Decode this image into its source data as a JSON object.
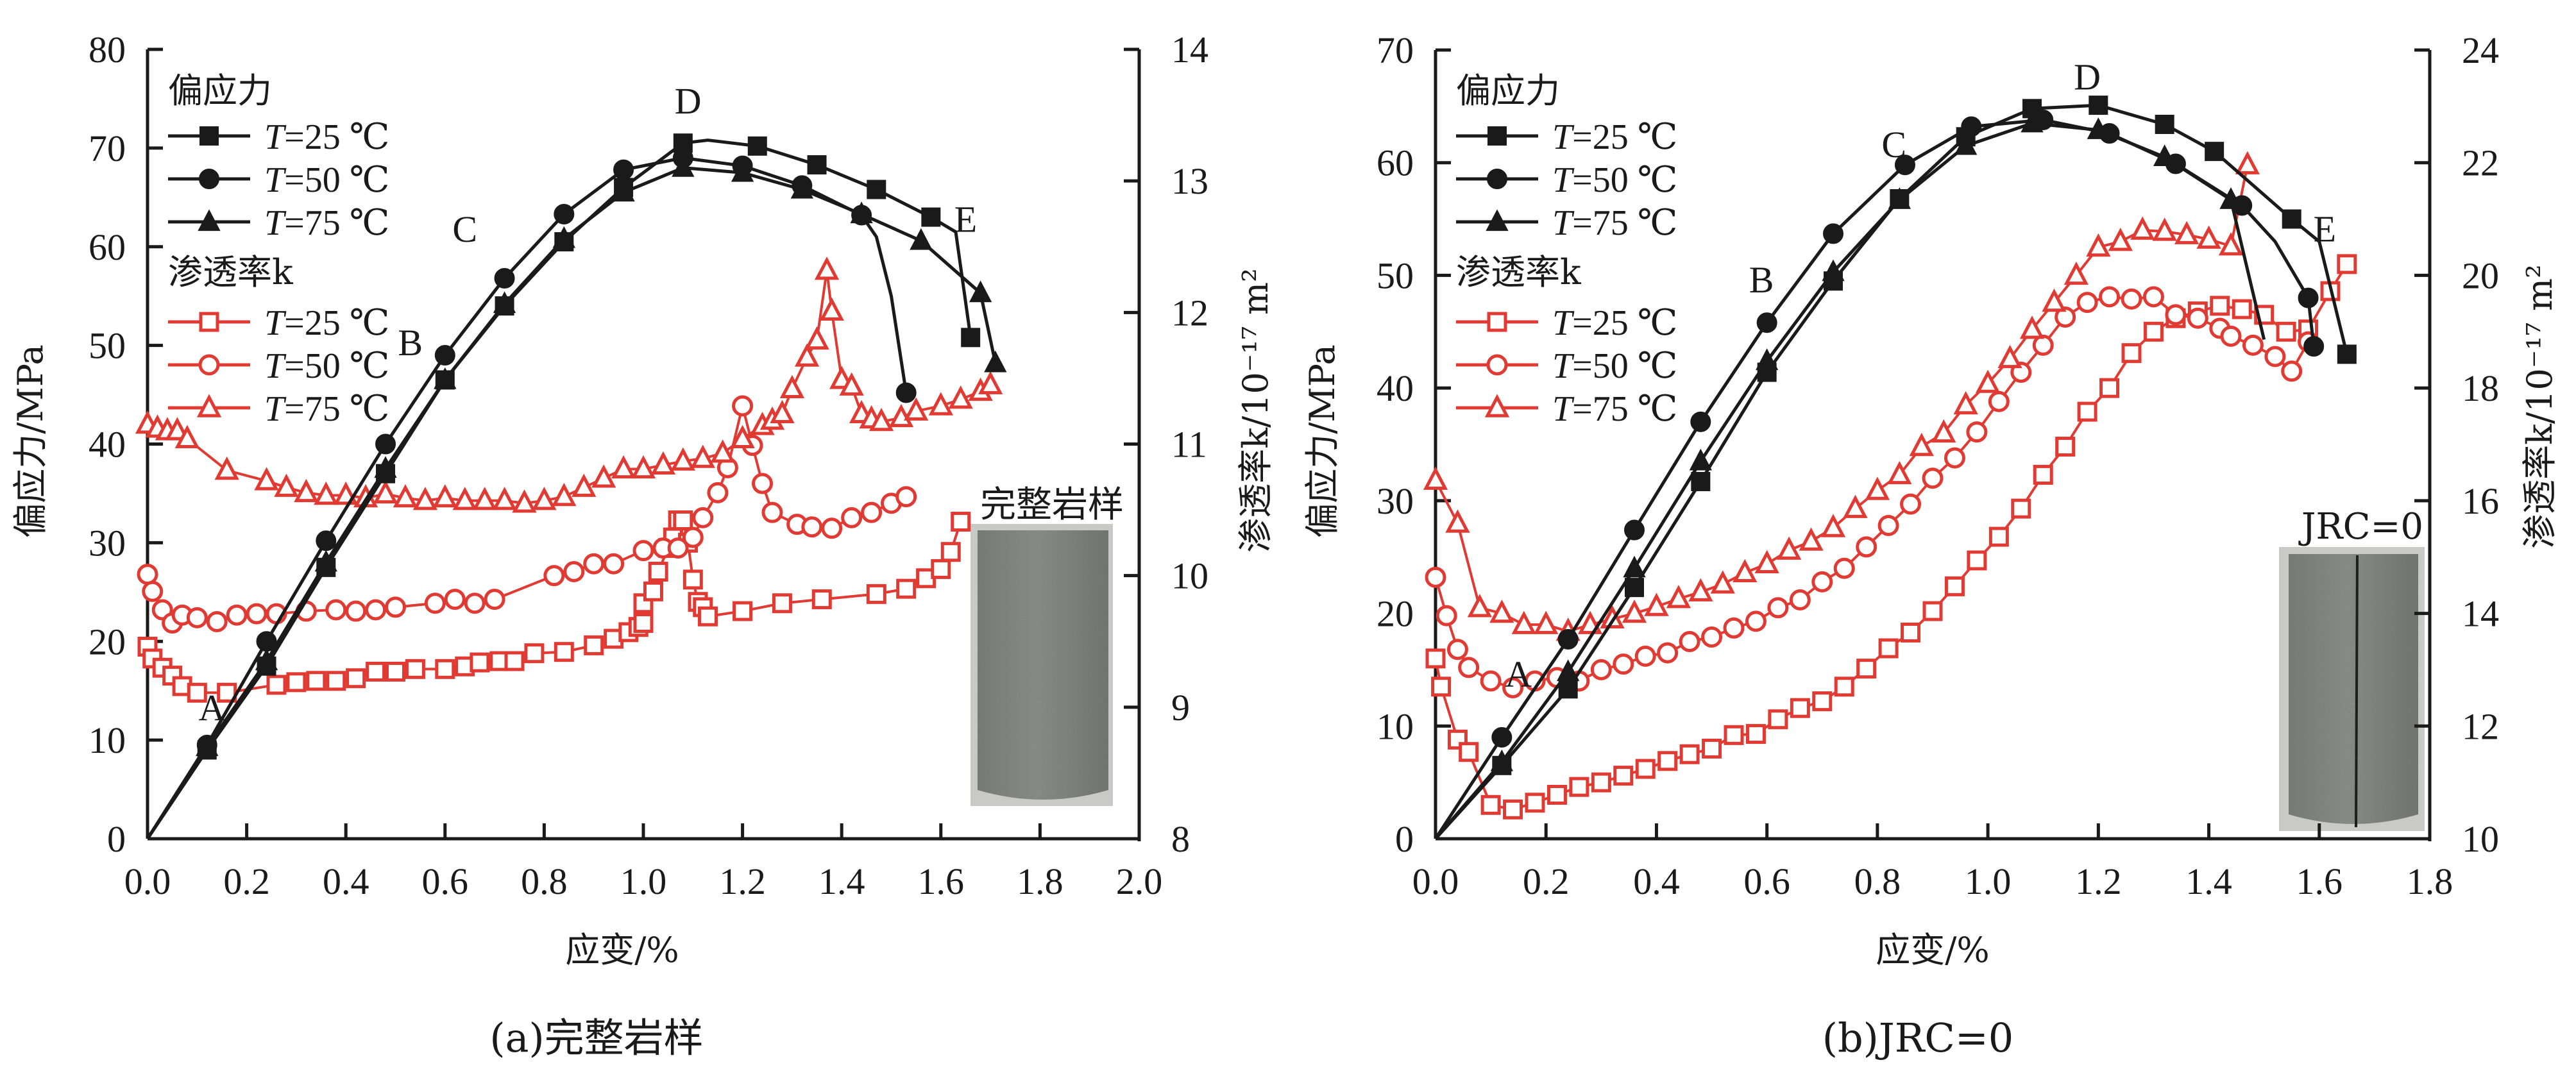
{
  "colors": {
    "stress": "#1a1a1a",
    "permeability": "#e03a33",
    "axis": "#1a1a1a"
  },
  "chart_data": [
    {
      "id": "a",
      "type": "line",
      "caption": "(a)完整岩样",
      "inset_label": "完整岩样",
      "xlabel": "应变/%",
      "ylabel": "偏应力/MPa",
      "y2label": "渗透率k/10⁻¹⁷ m²",
      "xlim": [
        0,
        2.0
      ],
      "ylim": [
        0,
        80
      ],
      "y2lim": [
        8,
        14
      ],
      "xticks": [
        "0.0",
        "0.2",
        "0.4",
        "0.6",
        "0.8",
        "1.0",
        "1.2",
        "1.4",
        "1.6",
        "1.8",
        "2.0"
      ],
      "yticks": [
        "0",
        "10",
        "20",
        "30",
        "40",
        "50",
        "60",
        "70",
        "80"
      ],
      "y2ticks": [
        "8",
        "9",
        "10",
        "11",
        "12",
        "13",
        "14"
      ],
      "grid": false,
      "legend": {
        "placement": "top-left",
        "stress_header": "偏应力",
        "perm_header": "渗透率k",
        "entries": [
          "T=25 ℃",
          "T=50 ℃",
          "T=75 ℃"
        ]
      },
      "point_labels": [
        {
          "text": "A",
          "x": 0.13,
          "y": 12
        },
        {
          "text": "B",
          "x": 0.53,
          "y": 49
        },
        {
          "text": "C",
          "x": 0.64,
          "y": 60.5
        },
        {
          "text": "D",
          "x": 1.09,
          "y": 73.5
        },
        {
          "text": "E",
          "x": 1.65,
          "y": 61.5
        }
      ],
      "stress_series": [
        {
          "name": "T=25 ℃",
          "marker": "square",
          "x": [
            0,
            0.12,
            0.24,
            0.36,
            0.48,
            0.6,
            0.72,
            0.84,
            0.96,
            1.08,
            1.13,
            1.23,
            1.35,
            1.47,
            1.58,
            1.63,
            1.66
          ],
          "y": [
            0,
            9,
            17.5,
            27.5,
            37,
            46.5,
            54,
            60.5,
            66,
            70.5,
            70.8,
            70.2,
            68.3,
            65.8,
            63,
            61.5,
            50.8
          ],
          "markers": [
            1,
            1,
            1,
            1,
            1,
            1,
            1,
            1,
            1,
            1,
            0,
            1,
            1,
            1,
            1,
            0,
            1
          ]
        },
        {
          "name": "T=50 ℃",
          "marker": "circle",
          "x": [
            0,
            0.12,
            0.24,
            0.36,
            0.48,
            0.6,
            0.72,
            0.84,
            0.96,
            1.08,
            1.2,
            1.32,
            1.44,
            1.47,
            1.5,
            1.53
          ],
          "y": [
            0,
            9.5,
            20,
            30.2,
            40,
            49,
            56.8,
            63.3,
            67.8,
            69,
            68.2,
            66.2,
            63.2,
            61,
            55,
            45.2
          ],
          "markers": [
            1,
            1,
            1,
            1,
            1,
            1,
            1,
            1,
            1,
            1,
            1,
            1,
            1,
            0,
            0,
            1
          ]
        },
        {
          "name": "T=75 ℃",
          "marker": "triangle",
          "x": [
            0,
            0.12,
            0.24,
            0.36,
            0.48,
            0.6,
            0.72,
            0.84,
            0.96,
            1.08,
            1.2,
            1.32,
            1.44,
            1.56,
            1.68,
            1.71
          ],
          "y": [
            0,
            9.3,
            18,
            28,
            37.5,
            46.5,
            54.2,
            60.8,
            65.5,
            68,
            67.5,
            65.8,
            63.3,
            60.6,
            55.3,
            48.2
          ],
          "markers": [
            1,
            1,
            1,
            1,
            1,
            1,
            1,
            1,
            1,
            1,
            1,
            1,
            1,
            1,
            1,
            1
          ]
        }
      ],
      "perm_series": [
        {
          "name": "T=25 ℃",
          "marker": "square",
          "x": [
            0,
            0.01,
            0.03,
            0.05,
            0.07,
            0.1,
            0.16,
            0.26,
            0.3,
            0.34,
            0.38,
            0.42,
            0.46,
            0.5,
            0.54,
            0.6,
            0.64,
            0.67,
            0.71,
            0.74,
            0.78,
            0.84,
            0.9,
            0.94,
            0.97,
            0.99,
            1.0,
            1.0,
            1.02,
            1.03,
            1.05,
            1.06,
            1.07,
            1.08,
            1.09,
            1.1,
            1.11,
            1.12,
            1.13,
            1.2,
            1.28,
            1.36,
            1.47,
            1.53,
            1.57,
            1.6,
            1.62,
            1.64
          ],
          "k": [
            9.46,
            9.37,
            9.3,
            9.24,
            9.16,
            9.11,
            9.11,
            9.17,
            9.19,
            9.2,
            9.2,
            9.22,
            9.27,
            9.27,
            9.29,
            9.29,
            9.31,
            9.34,
            9.35,
            9.35,
            9.41,
            9.42,
            9.47,
            9.52,
            9.57,
            9.61,
            9.64,
            9.79,
            9.88,
            10.03,
            10.21,
            10.29,
            10.42,
            10.42,
            10.25,
            9.97,
            9.8,
            9.76,
            9.69,
            9.73,
            9.79,
            9.82,
            9.86,
            9.9,
            9.98,
            10.05,
            10.18,
            10.41
          ]
        },
        {
          "name": "T=50 ℃",
          "marker": "circle",
          "x": [
            0,
            0.01,
            0.03,
            0.05,
            0.07,
            0.1,
            0.14,
            0.18,
            0.22,
            0.26,
            0.32,
            0.38,
            0.42,
            0.46,
            0.5,
            0.58,
            0.62,
            0.66,
            0.7,
            0.82,
            0.86,
            0.9,
            0.94,
            1.0,
            1.04,
            1.07,
            1.1,
            1.12,
            1.15,
            1.17,
            1.2,
            1.22,
            1.24,
            1.26,
            1.31,
            1.34,
            1.38,
            1.42,
            1.46,
            1.5,
            1.53
          ],
          "k": [
            10.01,
            9.88,
            9.74,
            9.64,
            9.7,
            9.68,
            9.65,
            9.7,
            9.71,
            9.71,
            9.73,
            9.74,
            9.73,
            9.74,
            9.76,
            9.79,
            9.82,
            9.79,
            9.82,
            10.0,
            10.03,
            10.09,
            10.09,
            10.19,
            10.21,
            10.21,
            10.29,
            10.44,
            10.63,
            10.82,
            11.29,
            10.99,
            10.7,
            10.48,
            10.39,
            10.37,
            10.36,
            10.44,
            10.48,
            10.55,
            10.6
          ]
        },
        {
          "name": "T=75 ℃",
          "marker": "triangle",
          "x": [
            0,
            0.02,
            0.04,
            0.06,
            0.08,
            0.16,
            0.24,
            0.28,
            0.32,
            0.36,
            0.4,
            0.44,
            0.48,
            0.52,
            0.56,
            0.6,
            0.64,
            0.68,
            0.72,
            0.76,
            0.8,
            0.84,
            0.88,
            0.92,
            0.96,
            1.0,
            1.04,
            1.08,
            1.12,
            1.16,
            1.2,
            1.24,
            1.26,
            1.28,
            1.3,
            1.33,
            1.35,
            1.37,
            1.38,
            1.4,
            1.42,
            1.44,
            1.46,
            1.48,
            1.52,
            1.55,
            1.6,
            1.64,
            1.68,
            1.7
          ],
          "k": [
            11.15,
            11.12,
            11.1,
            11.1,
            11.04,
            10.8,
            10.72,
            10.67,
            10.63,
            10.61,
            10.61,
            10.59,
            10.62,
            10.59,
            10.57,
            10.59,
            10.57,
            10.57,
            10.57,
            10.55,
            10.57,
            10.6,
            10.67,
            10.74,
            10.81,
            10.81,
            10.84,
            10.87,
            10.89,
            10.93,
            11.04,
            11.14,
            11.18,
            11.23,
            11.42,
            11.66,
            11.79,
            12.32,
            12.01,
            11.49,
            11.44,
            11.23,
            11.19,
            11.17,
            11.2,
            11.25,
            11.29,
            11.34,
            11.4,
            11.45
          ]
        }
      ]
    },
    {
      "id": "b",
      "type": "line",
      "caption": "(b)JRC=0",
      "inset_label": "JRC=0",
      "xlabel": "应变/%",
      "ylabel": "偏应力/MPa",
      "y2label": "渗透率k/10⁻¹⁷ m²",
      "xlim": [
        0,
        1.8
      ],
      "ylim": [
        0,
        70
      ],
      "y2lim": [
        10,
        24
      ],
      "xticks": [
        "0.0",
        "0.2",
        "0.4",
        "0.6",
        "0.8",
        "1.0",
        "1.2",
        "1.4",
        "1.6",
        "1.8"
      ],
      "yticks": [
        "0",
        "10",
        "20",
        "30",
        "40",
        "50",
        "60",
        "70"
      ],
      "y2ticks": [
        "10",
        "12",
        "14",
        "16",
        "18",
        "20",
        "22",
        "24"
      ],
      "grid": false,
      "legend": {
        "placement": "top-left",
        "stress_header": "偏应力",
        "perm_header": "渗透率k",
        "entries": [
          "T=25 ℃",
          "T=50 ℃",
          "T=75 ℃"
        ]
      },
      "point_labels": [
        {
          "text": "A",
          "x": 0.15,
          "y": 13.5
        },
        {
          "text": "B",
          "x": 0.59,
          "y": 48.5
        },
        {
          "text": "C",
          "x": 0.83,
          "y": 60.5
        },
        {
          "text": "D",
          "x": 1.18,
          "y": 66.5
        },
        {
          "text": "E",
          "x": 1.61,
          "y": 53
        }
      ],
      "stress_series": [
        {
          "name": "T=25 ℃",
          "marker": "square",
          "x": [
            0,
            0.12,
            0.24,
            0.36,
            0.48,
            0.6,
            0.72,
            0.84,
            0.96,
            1.08,
            1.2,
            1.32,
            1.41,
            1.55,
            1.6,
            1.65
          ],
          "y": [
            0,
            6.5,
            13.3,
            22.3,
            31.7,
            41.4,
            49.5,
            56.8,
            62.3,
            64.8,
            65.1,
            63.4,
            61,
            55,
            53,
            43
          ],
          "markers": [
            1,
            1,
            1,
            1,
            1,
            1,
            1,
            1,
            1,
            1,
            1,
            1,
            1,
            1,
            0,
            1
          ]
        },
        {
          "name": "T=50 ℃",
          "marker": "circle",
          "x": [
            0,
            0.12,
            0.24,
            0.36,
            0.48,
            0.6,
            0.72,
            0.85,
            0.97,
            1.1,
            1.22,
            1.34,
            1.46,
            1.52,
            1.58,
            1.59
          ],
          "y": [
            0,
            9,
            17.7,
            27.4,
            37,
            45.8,
            53.7,
            59.8,
            63.2,
            63.8,
            62.6,
            59.9,
            56.2,
            53,
            48,
            43.7
          ],
          "markers": [
            1,
            1,
            1,
            1,
            1,
            1,
            1,
            1,
            1,
            1,
            1,
            1,
            1,
            0,
            1,
            1
          ]
        },
        {
          "name": "T=75 ℃",
          "marker": "triangle",
          "x": [
            0,
            0.12,
            0.24,
            0.36,
            0.48,
            0.6,
            0.72,
            0.84,
            0.96,
            1.08,
            1.2,
            1.32,
            1.44,
            1.5
          ],
          "y": [
            0,
            6.8,
            14.8,
            24,
            33.5,
            42.4,
            50.3,
            56.7,
            61.5,
            63.5,
            62.9,
            60.5,
            56.7,
            44.3
          ],
          "markers": [
            1,
            1,
            1,
            1,
            1,
            1,
            1,
            1,
            1,
            1,
            1,
            1,
            1,
            0
          ]
        }
      ],
      "perm_series": [
        {
          "name": "T=25 ℃",
          "marker": "square",
          "x": [
            0,
            0.01,
            0.04,
            0.06,
            0.1,
            0.14,
            0.18,
            0.22,
            0.26,
            0.3,
            0.34,
            0.38,
            0.42,
            0.46,
            0.5,
            0.54,
            0.58,
            0.62,
            0.66,
            0.7,
            0.74,
            0.78,
            0.82,
            0.86,
            0.9,
            0.94,
            0.98,
            1.02,
            1.06,
            1.1,
            1.14,
            1.18,
            1.22,
            1.26,
            1.3,
            1.34,
            1.38,
            1.42,
            1.46,
            1.5,
            1.54,
            1.58,
            1.62,
            1.65
          ],
          "k": [
            13.2,
            12.7,
            11.76,
            11.54,
            10.6,
            10.52,
            10.64,
            10.78,
            10.92,
            11.0,
            11.12,
            11.24,
            11.38,
            11.5,
            11.6,
            11.84,
            11.86,
            12.12,
            12.32,
            12.44,
            12.7,
            13.02,
            13.38,
            13.66,
            14.04,
            14.48,
            14.94,
            15.36,
            15.86,
            16.46,
            16.96,
            17.58,
            18.0,
            18.62,
            19.0,
            19.24,
            19.36,
            19.46,
            19.4,
            19.3,
            19.0,
            19.04,
            19.72,
            20.2
          ]
        },
        {
          "name": "T=50 ℃",
          "marker": "circle",
          "x": [
            0,
            0.02,
            0.04,
            0.06,
            0.1,
            0.14,
            0.18,
            0.22,
            0.26,
            0.3,
            0.34,
            0.38,
            0.42,
            0.46,
            0.5,
            0.54,
            0.58,
            0.62,
            0.66,
            0.7,
            0.74,
            0.78,
            0.82,
            0.86,
            0.9,
            0.94,
            0.98,
            1.02,
            1.06,
            1.1,
            1.14,
            1.18,
            1.22,
            1.26,
            1.3,
            1.34,
            1.38,
            1.42,
            1.44,
            1.48,
            1.52,
            1.55,
            1.58
          ],
          "k": [
            14.64,
            13.96,
            13.36,
            13.04,
            12.8,
            12.68,
            12.8,
            12.86,
            12.8,
            13.0,
            13.1,
            13.24,
            13.3,
            13.5,
            13.58,
            13.74,
            13.86,
            14.1,
            14.24,
            14.56,
            14.8,
            15.18,
            15.56,
            15.94,
            16.4,
            16.76,
            17.22,
            17.76,
            18.28,
            18.76,
            19.26,
            19.52,
            19.62,
            19.58,
            19.62,
            19.3,
            19.24,
            19.06,
            18.92,
            18.76,
            18.56,
            18.3,
            18.82
          ]
        },
        {
          "name": "T=75 ℃",
          "marker": "triangle",
          "x": [
            0,
            0.04,
            0.08,
            0.12,
            0.16,
            0.2,
            0.24,
            0.28,
            0.32,
            0.36,
            0.4,
            0.44,
            0.48,
            0.52,
            0.56,
            0.6,
            0.64,
            0.68,
            0.72,
            0.76,
            0.8,
            0.84,
            0.88,
            0.92,
            0.96,
            1.0,
            1.04,
            1.08,
            1.12,
            1.16,
            1.2,
            1.24,
            1.28,
            1.32,
            1.36,
            1.4,
            1.44,
            1.47
          ],
          "k": [
            16.36,
            15.6,
            14.1,
            14.0,
            13.8,
            13.8,
            13.68,
            13.8,
            13.9,
            14.0,
            14.12,
            14.26,
            14.38,
            14.52,
            14.72,
            14.88,
            15.12,
            15.28,
            15.52,
            15.86,
            16.18,
            16.46,
            16.96,
            17.2,
            17.7,
            18.08,
            18.52,
            19.04,
            19.52,
            20.0,
            20.5,
            20.6,
            20.8,
            20.78,
            20.72,
            20.64,
            20.52,
            21.96
          ]
        }
      ]
    }
  ]
}
